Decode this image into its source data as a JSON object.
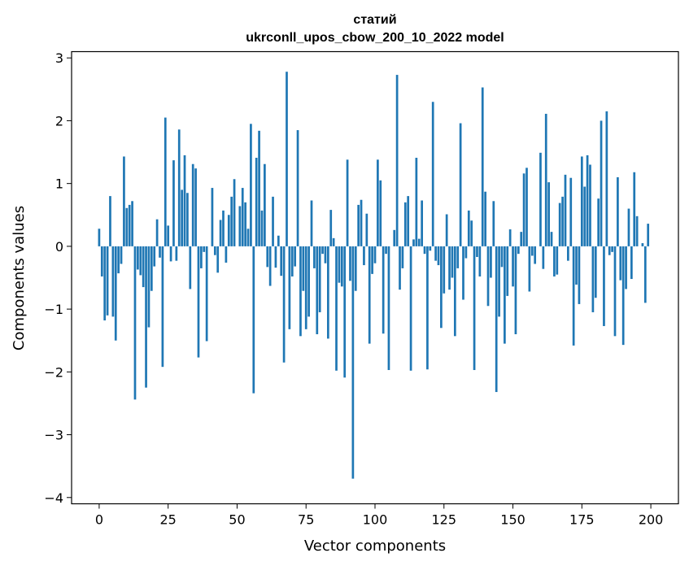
{
  "chart_data": {
    "type": "bar",
    "title": [
      "статий",
      "ukrconll_upos_cbow_200_10_2022 model"
    ],
    "xlabel": "Vector components",
    "ylabel": "Components values",
    "xlim": [
      -10,
      210
    ],
    "ylim": [
      -4.1,
      3.1
    ],
    "xticks": [
      0,
      25,
      50,
      75,
      100,
      125,
      150,
      175,
      200
    ],
    "yticks": [
      -4,
      -3,
      -2,
      -1,
      0,
      1,
      2,
      3
    ],
    "ytick_labels": [
      "−4",
      "−3",
      "−2",
      "−1",
      "0",
      "1",
      "2",
      "3"
    ],
    "bar_color": "#1f77b4",
    "grid": false,
    "x": [
      0,
      1,
      2,
      3,
      4,
      5,
      6,
      7,
      8,
      9,
      10,
      11,
      12,
      13,
      14,
      15,
      16,
      17,
      18,
      19,
      20,
      21,
      22,
      23,
      24,
      25,
      26,
      27,
      28,
      29,
      30,
      31,
      32,
      33,
      34,
      35,
      36,
      37,
      38,
      39,
      40,
      41,
      42,
      43,
      44,
      45,
      46,
      47,
      48,
      49,
      50,
      51,
      52,
      53,
      54,
      55,
      56,
      57,
      58,
      59,
      60,
      61,
      62,
      63,
      64,
      65,
      66,
      67,
      68,
      69,
      70,
      71,
      72,
      73,
      74,
      75,
      76,
      77,
      78,
      79,
      80,
      81,
      82,
      83,
      84,
      85,
      86,
      87,
      88,
      89,
      90,
      91,
      92,
      93,
      94,
      95,
      96,
      97,
      98,
      99,
      100,
      101,
      102,
      103,
      104,
      105,
      106,
      107,
      108,
      109,
      110,
      111,
      112,
      113,
      114,
      115,
      116,
      117,
      118,
      119,
      120,
      121,
      122,
      123,
      124,
      125,
      126,
      127,
      128,
      129,
      130,
      131,
      132,
      133,
      134,
      135,
      136,
      137,
      138,
      139,
      140,
      141,
      142,
      143,
      144,
      145,
      146,
      147,
      148,
      149,
      150,
      151,
      152,
      153,
      154,
      155,
      156,
      157,
      158,
      159,
      160,
      161,
      162,
      163,
      164,
      165,
      166,
      167,
      168,
      169,
      170,
      171,
      172,
      173,
      174,
      175,
      176,
      177,
      178,
      179,
      180,
      181,
      182,
      183,
      184,
      185,
      186,
      187,
      188,
      189,
      190,
      191,
      192,
      193,
      194,
      195,
      196,
      197,
      198,
      199
    ],
    "values": [
      0.28,
      -0.48,
      -1.18,
      -1.1,
      0.8,
      -1.12,
      -1.5,
      -0.43,
      -0.28,
      1.43,
      0.61,
      0.66,
      0.72,
      -2.44,
      -0.37,
      -0.46,
      -0.65,
      -2.25,
      -1.29,
      -0.71,
      -0.32,
      0.43,
      -0.18,
      -1.92,
      2.05,
      0.33,
      -0.24,
      1.37,
      -0.23,
      1.86,
      0.9,
      1.45,
      0.85,
      -0.68,
      1.31,
      1.24,
      -1.77,
      -0.35,
      -0.09,
      -1.51,
      0.0,
      0.93,
      -0.14,
      -0.42,
      0.42,
      0.57,
      -0.26,
      0.5,
      0.79,
      1.07,
      0.0,
      0.64,
      0.93,
      0.7,
      0.28,
      1.95,
      -2.34,
      1.41,
      1.84,
      0.57,
      1.31,
      -0.33,
      -0.63,
      0.79,
      -0.34,
      0.17,
      -0.47,
      -1.85,
      2.78,
      -1.32,
      -0.48,
      -0.32,
      1.85,
      -1.43,
      -0.71,
      -1.32,
      -1.12,
      0.73,
      -0.35,
      -1.4,
      -1.05,
      -0.12,
      -0.27,
      -1.47,
      0.58,
      0.13,
      -1.98,
      -0.58,
      -0.64,
      -2.09,
      1.38,
      -0.55,
      -3.7,
      -0.71,
      0.66,
      0.74,
      -0.3,
      0.52,
      -1.55,
      -0.44,
      -0.27,
      1.38,
      1.05,
      -1.39,
      -0.12,
      -1.97,
      0.0,
      0.26,
      2.73,
      -0.69,
      -0.35,
      0.7,
      0.8,
      -1.98,
      0.11,
      1.41,
      0.12,
      0.73,
      -0.12,
      -1.96,
      -0.07,
      2.3,
      -0.23,
      -0.3,
      -1.3,
      -0.75,
      0.51,
      -0.69,
      -0.5,
      -1.43,
      -0.35,
      1.96,
      -0.85,
      -0.19,
      0.57,
      0.41,
      -1.97,
      -0.17,
      -0.48,
      2.53,
      0.87,
      -0.95,
      -0.5,
      0.72,
      -2.32,
      -1.12,
      -0.33,
      -1.55,
      -0.79,
      0.27,
      -0.64,
      -1.4,
      -0.12,
      0.23,
      1.16,
      1.25,
      -0.72,
      -0.15,
      -0.28,
      0.0,
      1.49,
      -0.36,
      2.11,
      1.02,
      0.23,
      -0.48,
      -0.45,
      0.69,
      0.79,
      1.14,
      -0.23,
      1.09,
      -1.58,
      -0.61,
      -0.92,
      1.43,
      0.95,
      1.45,
      1.3,
      -1.05,
      -0.82,
      0.76,
      2.0,
      -1.27,
      2.15,
      -0.14,
      -0.09,
      -1.43,
      1.1,
      -0.54,
      -1.57,
      -0.68,
      0.6,
      -0.52,
      1.18,
      0.48,
      0.0,
      0.05,
      -0.9,
      0.36
    ]
  }
}
